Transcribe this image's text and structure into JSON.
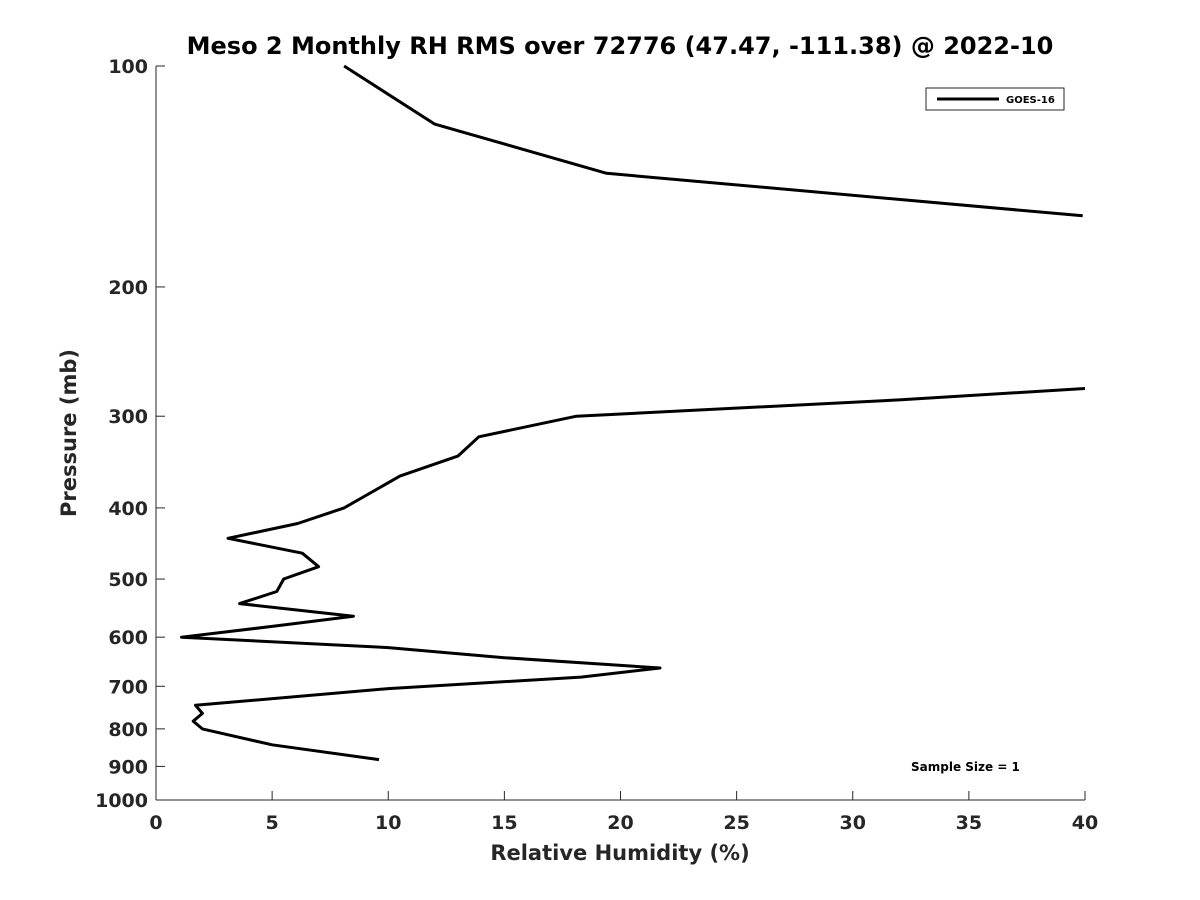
{
  "chart_data": {
    "type": "line",
    "title": "Meso 2 Monthly RH RMS over 72776 (47.47, -111.38) @ 2022-10",
    "xlabel": "Relative Humidity (%)",
    "ylabel": "Pressure (mb)",
    "xlim": [
      0,
      40
    ],
    "ylim": [
      100,
      1000
    ],
    "y_scale": "log",
    "y_reversed": true,
    "grid": false,
    "x_ticks": [
      0,
      5,
      10,
      15,
      20,
      25,
      30,
      35,
      40
    ],
    "x_tick_labels": [
      "0",
      "5",
      "10",
      "15",
      "20",
      "25",
      "30",
      "35",
      "40"
    ],
    "y_ticks": [
      100,
      200,
      300,
      400,
      500,
      600,
      700,
      800,
      900,
      1000
    ],
    "y_tick_labels": [
      "100",
      "200",
      "300",
      "400",
      "500",
      "600",
      "700",
      "800",
      "900",
      "1000"
    ],
    "legend": {
      "position": "top-right",
      "entries": [
        "GOES-16"
      ]
    },
    "annotation": "Sample Size = 1",
    "series": [
      {
        "name": "GOES-16",
        "color": "#000000",
        "segments": [
          [
            {
              "x": 8.1,
              "p": 100
            },
            {
              "x": 12.0,
              "p": 120
            },
            {
              "x": 19.4,
              "p": 140
            },
            {
              "x": 39.9,
              "p": 160
            }
          ],
          [
            {
              "x": 40.0,
              "p": 275
            },
            {
              "x": 32.0,
              "p": 285
            },
            {
              "x": 18.1,
              "p": 300
            },
            {
              "x": 13.9,
              "p": 320
            },
            {
              "x": 13.0,
              "p": 340
            },
            {
              "x": 10.5,
              "p": 362
            },
            {
              "x": 8.1,
              "p": 400
            },
            {
              "x": 6.1,
              "p": 420
            },
            {
              "x": 3.1,
              "p": 440
            },
            {
              "x": 6.3,
              "p": 461
            },
            {
              "x": 7.0,
              "p": 481
            },
            {
              "x": 5.5,
              "p": 500
            },
            {
              "x": 5.2,
              "p": 520
            },
            {
              "x": 3.6,
              "p": 540
            },
            {
              "x": 8.5,
              "p": 562
            },
            {
              "x": 5.0,
              "p": 580
            },
            {
              "x": 1.1,
              "p": 600
            },
            {
              "x": 10.0,
              "p": 620
            },
            {
              "x": 15.0,
              "p": 640
            },
            {
              "x": 21.7,
              "p": 661
            },
            {
              "x": 18.3,
              "p": 680
            },
            {
              "x": 10.0,
              "p": 705
            },
            {
              "x": 1.7,
              "p": 743
            },
            {
              "x": 2.0,
              "p": 762
            },
            {
              "x": 1.6,
              "p": 781
            },
            {
              "x": 2.0,
              "p": 800
            },
            {
              "x": 5.0,
              "p": 841
            },
            {
              "x": 9.6,
              "p": 881
            }
          ]
        ]
      }
    ]
  }
}
